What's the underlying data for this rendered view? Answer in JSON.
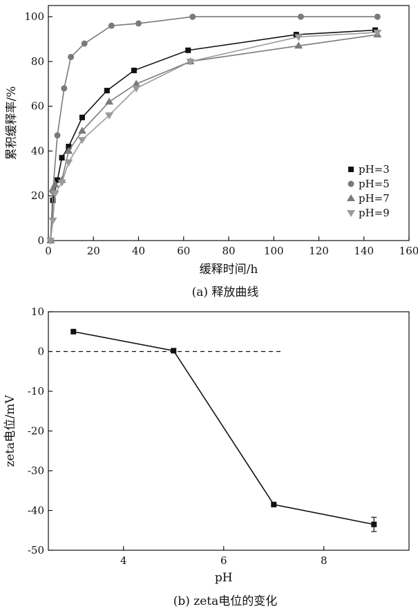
{
  "chart_data": [
    {
      "type": "line",
      "caption": "(a) 释放曲线",
      "xlabel": "缓释时间/h",
      "ylabel": "累积缓释率/%",
      "xlim": [
        0,
        160
      ],
      "ylim": [
        0,
        105
      ],
      "xticks": [
        0,
        20,
        40,
        60,
        80,
        100,
        120,
        140,
        160
      ],
      "yticks": [
        0,
        20,
        40,
        60,
        80,
        100
      ],
      "grid": false,
      "legend_position": "right",
      "series": [
        {
          "name": "pH=3",
          "marker": "square",
          "color": "#111111",
          "x": [
            1,
            2,
            4,
            6,
            9,
            15,
            26,
            38,
            62,
            110,
            145
          ],
          "y": [
            0,
            18,
            27,
            37,
            42,
            55,
            67,
            76,
            85,
            92,
            94
          ]
        },
        {
          "name": "pH=5",
          "marker": "circle",
          "color": "#7a7a7a",
          "x": [
            1,
            2,
            4,
            7,
            10,
            16,
            28,
            40,
            64,
            112,
            146
          ],
          "y": [
            0,
            22,
            47,
            68,
            82,
            88,
            96,
            97,
            100,
            100,
            100
          ]
        },
        {
          "name": "pH=7",
          "marker": "triangle-up",
          "color": "#7a7a7a",
          "x": [
            1,
            2,
            3,
            6,
            9,
            15,
            27,
            39,
            63,
            111,
            146
          ],
          "y": [
            0,
            23,
            25,
            27,
            40,
            49,
            62,
            70,
            80,
            87,
            92
          ]
        },
        {
          "name": "pH=9",
          "marker": "triangle-down",
          "color": "#9a9a9a",
          "x": [
            1,
            2,
            3,
            6,
            9,
            15,
            27,
            39,
            63,
            111,
            146
          ],
          "y": [
            0,
            9,
            21,
            26,
            35,
            45,
            56,
            68,
            80,
            91,
            93
          ]
        }
      ]
    },
    {
      "type": "line",
      "caption": "(b) zeta电位的变化",
      "xlabel": "pH",
      "ylabel": "zeta电位/mV",
      "xlim": [
        2.5,
        9.7
      ],
      "ylim": [
        -50,
        10
      ],
      "xticks": [
        4,
        6,
        8
      ],
      "yticks": [
        10,
        0,
        -10,
        -20,
        -30,
        -40,
        -50
      ],
      "grid": false,
      "reference_line": {
        "y": 0,
        "x_from": 2.5,
        "x_to": 7.2,
        "style": "dashed"
      },
      "series": [
        {
          "marker": "square",
          "color": "#111111",
          "x": [
            3,
            5,
            7,
            9
          ],
          "y": [
            5,
            0.2,
            -38.5,
            -43.5
          ],
          "error": [
            0,
            0,
            0,
            1.8
          ]
        }
      ]
    }
  ]
}
